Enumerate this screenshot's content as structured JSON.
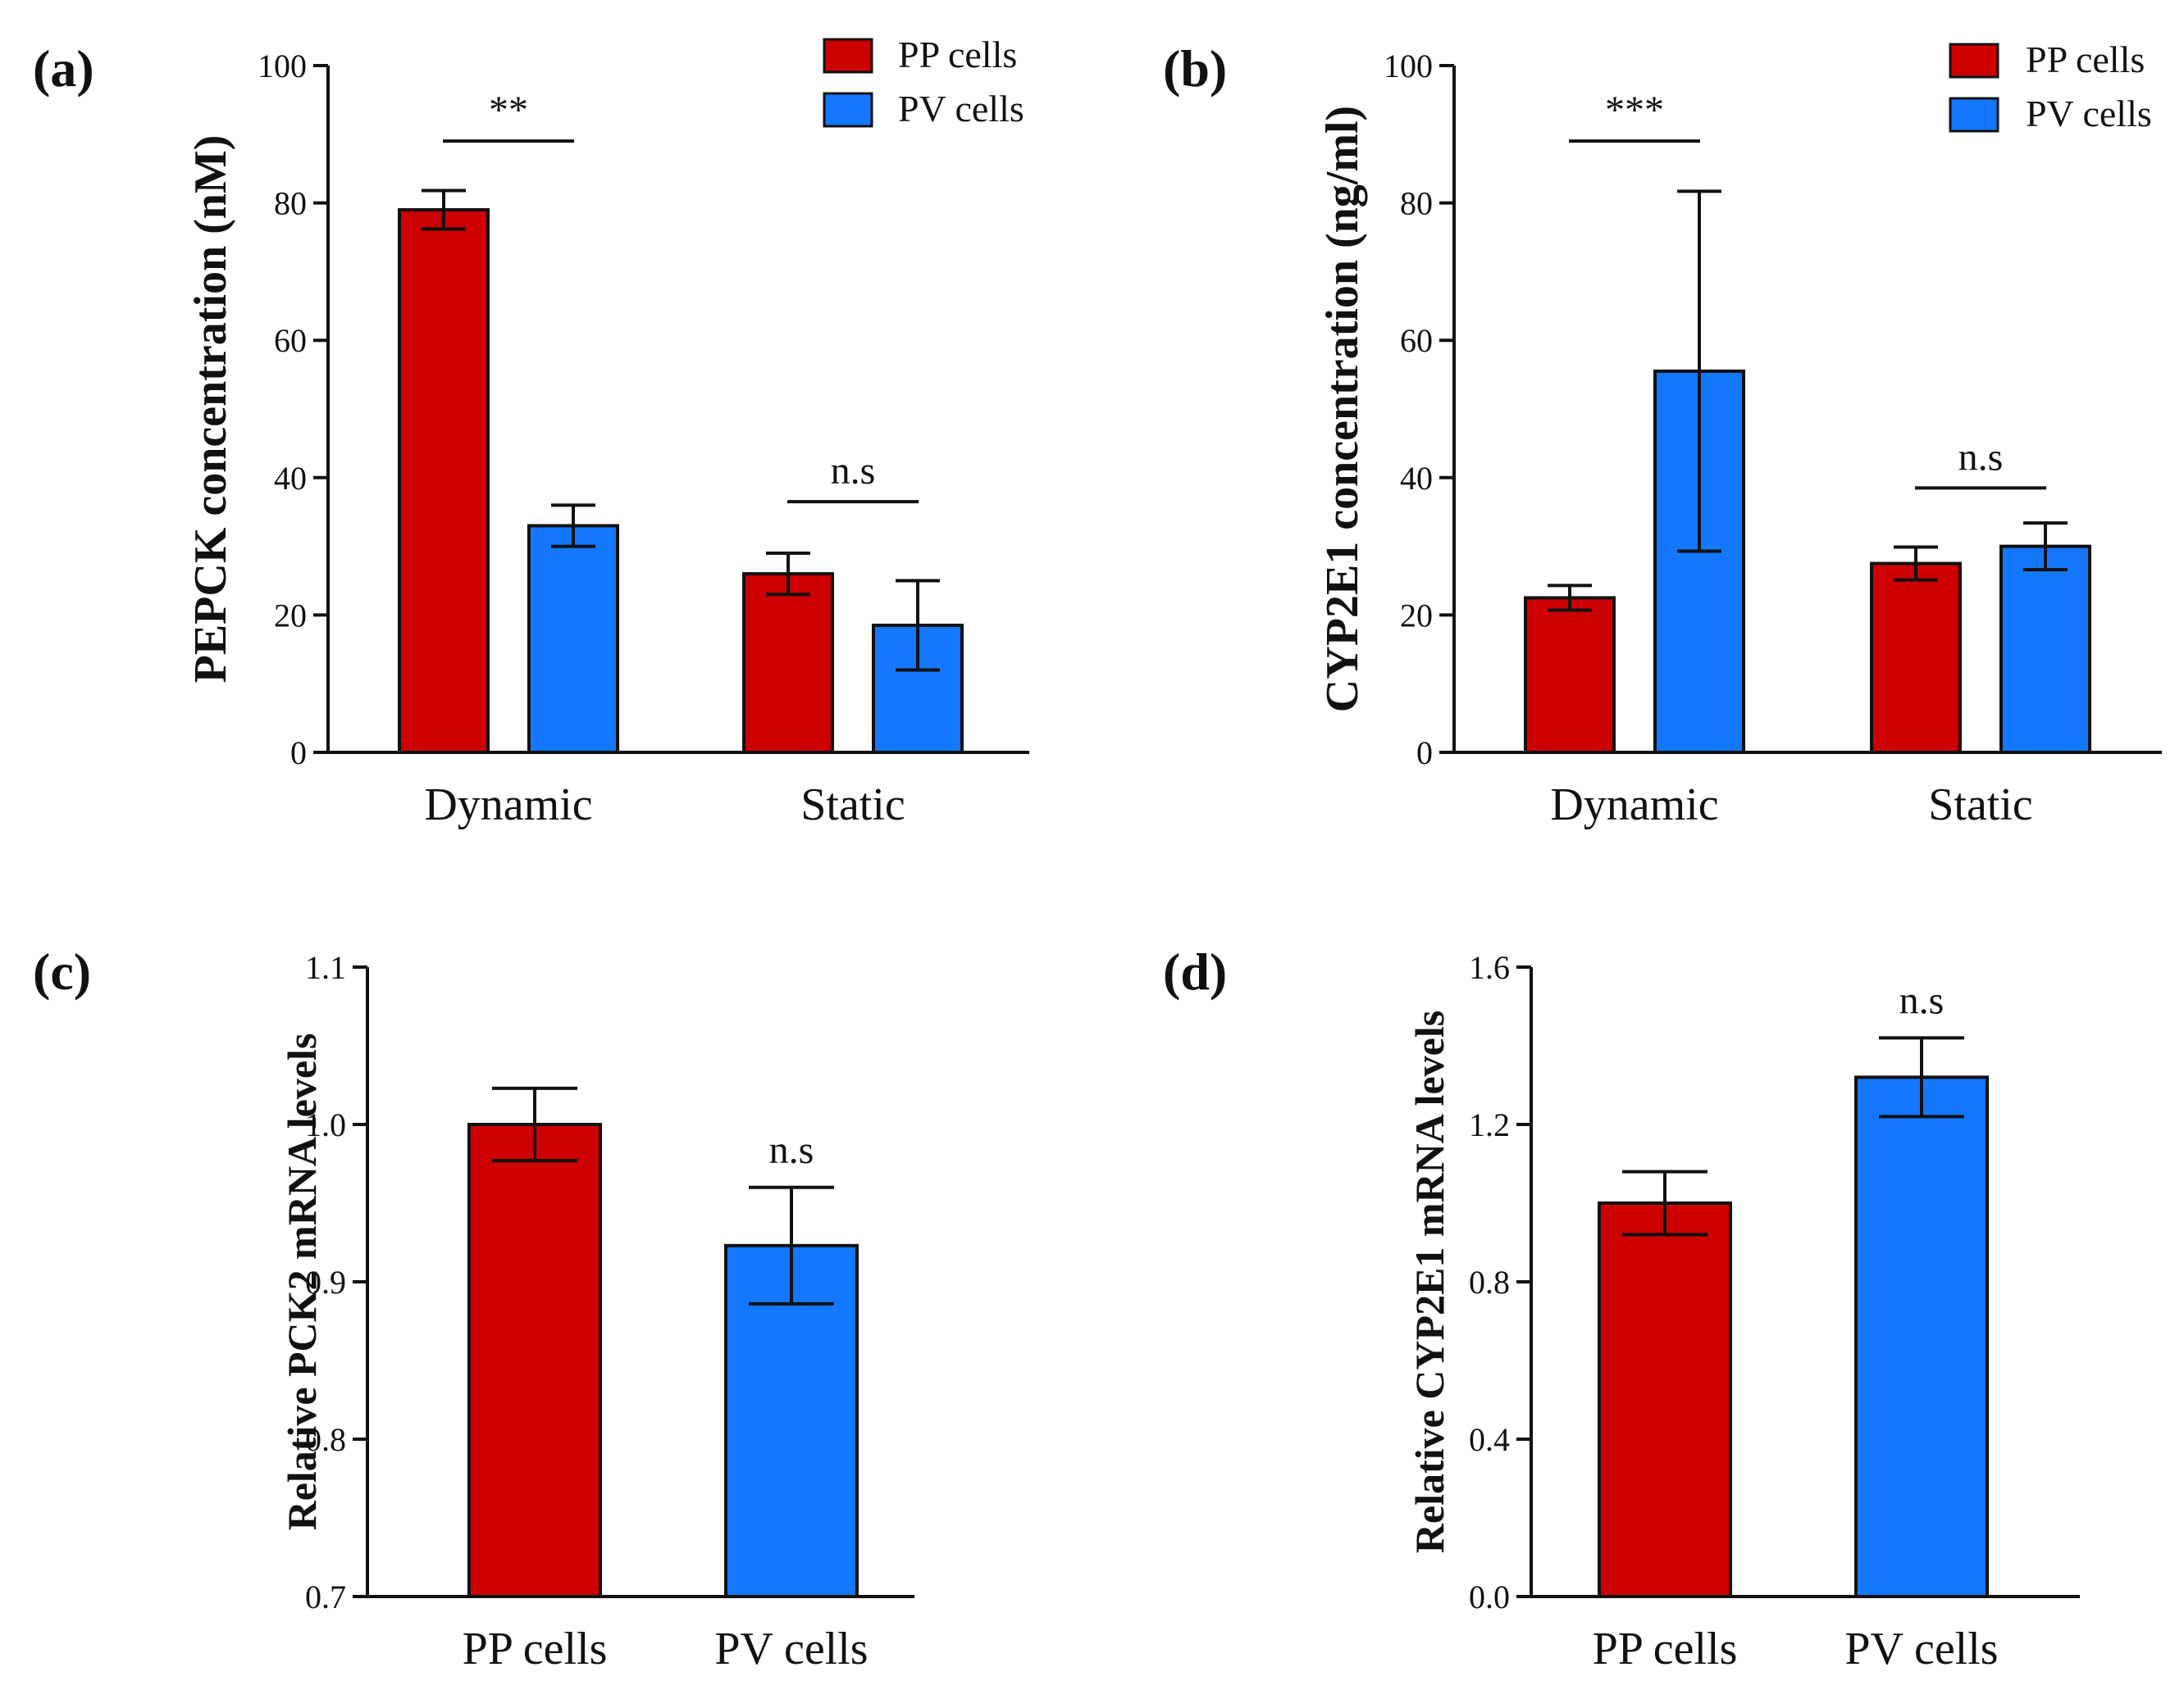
{
  "colors": {
    "pp": "#cc0000",
    "pv": "#1478ff"
  },
  "chart_data": [
    {
      "id": "a",
      "panel_label": "(a)",
      "type": "bar",
      "ylabel": "PEPCK concentration (nM)",
      "ylim": [
        0,
        100
      ],
      "yticks": [
        0,
        20,
        40,
        60,
        80,
        100
      ],
      "ytick_labels": [
        "0",
        "20",
        "40",
        "60",
        "80",
        "100"
      ],
      "categories": [
        "Dynamic",
        "Static"
      ],
      "series": [
        {
          "name": "PP cells",
          "color_key": "pp",
          "values": [
            79,
            26
          ],
          "errors": [
            2.8,
            3
          ]
        },
        {
          "name": "PV cells",
          "color_key": "pv",
          "values": [
            33,
            18.5
          ],
          "errors": [
            3,
            6.5
          ]
        }
      ],
      "legend": {
        "entries": [
          "PP cells",
          "PV cells"
        ],
        "placement": "top-right"
      },
      "significance": [
        {
          "category": "Dynamic",
          "label": "**",
          "line_y": 89
        },
        {
          "category": "Static",
          "label": "n.s",
          "line_y": 36.5
        }
      ]
    },
    {
      "id": "b",
      "panel_label": "(b)",
      "type": "bar",
      "ylabel": "CYP2E1 concentration (ng/ml)",
      "ylim": [
        0,
        100
      ],
      "yticks": [
        0,
        20,
        40,
        60,
        80,
        100
      ],
      "ytick_labels": [
        "0",
        "20",
        "40",
        "60",
        "80",
        "100"
      ],
      "categories": [
        "Dynamic",
        "Static"
      ],
      "series": [
        {
          "name": "PP cells",
          "color_key": "pp",
          "values": [
            22.5,
            27.5
          ],
          "errors": [
            1.8,
            2.4
          ]
        },
        {
          "name": "PV cells",
          "color_key": "pv",
          "values": [
            55.5,
            30
          ],
          "errors": [
            26.2,
            3.4
          ]
        }
      ],
      "legend": {
        "entries": [
          "PP cells",
          "PV cells"
        ],
        "placement": "top-right"
      },
      "significance": [
        {
          "category": "Dynamic",
          "label": "***",
          "line_y": 89
        },
        {
          "category": "Static",
          "label": "n.s",
          "line_y": 38.5
        }
      ]
    },
    {
      "id": "c",
      "panel_label": "(c)",
      "type": "bar",
      "ylabel": "Relative PCK2 mRNA levels",
      "ylim": [
        0.7,
        1.1
      ],
      "yticks": [
        0.7,
        0.8,
        0.9,
        1.0,
        1.1
      ],
      "ytick_labels": [
        "0.7",
        "0.8",
        "0.9",
        "1.0",
        "1.1"
      ],
      "categories": [
        "PP cells",
        "PV cells"
      ],
      "series": [
        {
          "name": "Relative PCK2 mRNA levels",
          "color_keys": [
            "pp",
            "pv"
          ],
          "values": [
            1.0,
            0.923
          ],
          "errors": [
            0.023,
            0.037
          ]
        }
      ],
      "significance": [
        {
          "category": "PV cells",
          "label": "n.s"
        }
      ]
    },
    {
      "id": "d",
      "panel_label": "(d)",
      "type": "bar",
      "ylabel": "Relative CYP2E1 mRNA levels",
      "ylim": [
        0.0,
        1.6
      ],
      "yticks": [
        0.0,
        0.4,
        0.8,
        1.2,
        1.6
      ],
      "ytick_labels": [
        "0.0",
        "0.4",
        "0.8",
        "1.2",
        "1.6"
      ],
      "categories": [
        "PP cells",
        "PV cells"
      ],
      "series": [
        {
          "name": "Relative CYP2E1 mRNA levels",
          "color_keys": [
            "pp",
            "pv"
          ],
          "values": [
            1.0,
            1.32
          ],
          "errors": [
            0.08,
            0.1
          ]
        }
      ],
      "significance": [
        {
          "category": "PV cells",
          "label": "n.s"
        }
      ]
    }
  ]
}
